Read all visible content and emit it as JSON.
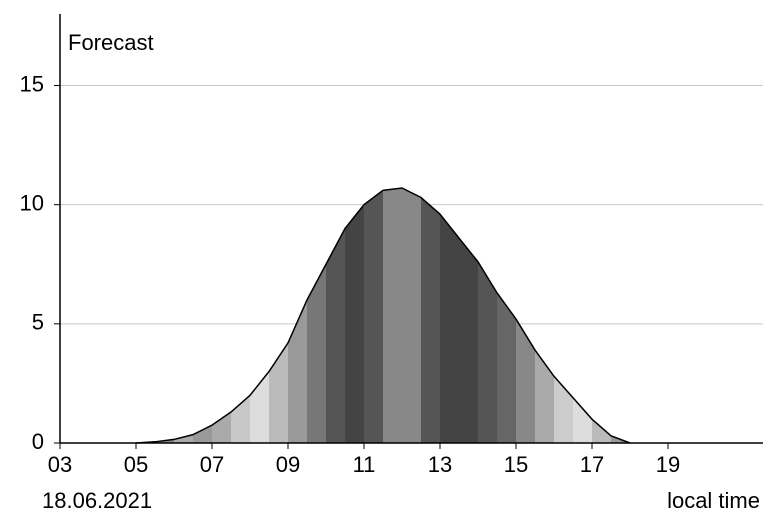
{
  "chart_data": {
    "type": "area",
    "title": "Forecast",
    "date": "18.06.2021",
    "x_label": "local time",
    "x": [
      5,
      5.5,
      6,
      6.5,
      7,
      7.5,
      8,
      8.5,
      9,
      9.5,
      10,
      10.5,
      11,
      11.5,
      12,
      12.5,
      13,
      13.5,
      14,
      14.5,
      15,
      15.5,
      16,
      16.5,
      17,
      17.5,
      18
    ],
    "values": [
      0,
      0.05,
      0.15,
      0.35,
      0.75,
      1.3,
      2.0,
      3.0,
      4.2,
      6.0,
      7.5,
      9.0,
      10.0,
      10.6,
      10.7,
      10.3,
      9.6,
      8.6,
      7.6,
      6.3,
      5.2,
      3.9,
      2.8,
      1.9,
      1.0,
      0.3,
      0
    ],
    "stripe_colors": [
      "#999999",
      "#888888",
      "#aaaaaa",
      "#999999",
      "#aaaaaa",
      "#c8c8c8",
      "#dddddd",
      "#bbbbbb",
      "#999999",
      "#777777",
      "#555555",
      "#444444",
      "#555555",
      "#888888",
      "#888888",
      "#555555",
      "#444444",
      "#444444",
      "#555555",
      "#666666",
      "#888888",
      "#aaaaaa",
      "#cccccc",
      "#dddddd",
      "#bbbbbb",
      "#999999"
    ],
    "xlim": [
      3,
      21.5
    ],
    "ylim": [
      0,
      18
    ],
    "xticks": [
      {
        "value": 3,
        "label": "03"
      },
      {
        "value": 5,
        "label": "05"
      },
      {
        "value": 7,
        "label": "07"
      },
      {
        "value": 9,
        "label": "09"
      },
      {
        "value": 11,
        "label": "11"
      },
      {
        "value": 13,
        "label": "13"
      },
      {
        "value": 15,
        "label": "15"
      },
      {
        "value": 17,
        "label": "17"
      },
      {
        "value": 19,
        "label": "19"
      }
    ],
    "yticks": [
      0,
      5,
      10,
      15
    ],
    "grid": true
  }
}
